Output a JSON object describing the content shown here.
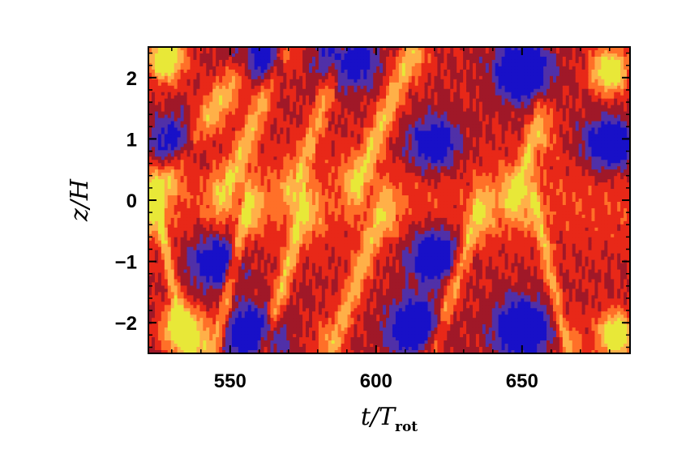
{
  "chart_data": {
    "type": "heatmap",
    "title": "",
    "xlabel": {
      "main": "t/T",
      "sub": "rot"
    },
    "ylabel": "z/H",
    "xlim": [
      522,
      687
    ],
    "ylim": [
      -2.5,
      2.5
    ],
    "xticks": [
      550,
      600,
      650
    ],
    "xtick_labels": [
      "550",
      "600",
      "650"
    ],
    "yticks": [
      -2,
      -1,
      0,
      1,
      2
    ],
    "ytick_labels": [
      "−2",
      "−1",
      "0",
      "1",
      "2"
    ],
    "colorbar": false,
    "levels": 7,
    "palette": [
      "#1810c8",
      "#5030a8",
      "#a01828",
      "#e82818",
      "#ff7028",
      "#ffb048",
      "#e8e838"
    ],
    "features": [
      {
        "kind": "positive-band",
        "t_start": 525,
        "z_start": 0.1,
        "t_end": 555,
        "z_end": 2.2,
        "level": 0.85
      },
      {
        "kind": "positive-band",
        "t_start": 548,
        "z_start": 0.1,
        "t_end": 568,
        "z_end": 2.4,
        "level": 0.8
      },
      {
        "kind": "positive-band",
        "t_start": 572,
        "z_start": 0.2,
        "t_end": 588,
        "z_end": 2.4,
        "level": 0.75
      },
      {
        "kind": "positive-band",
        "t_start": 594,
        "z_start": 0.3,
        "t_end": 612,
        "z_end": 2.4,
        "level": 0.85
      },
      {
        "kind": "positive-band",
        "t_start": 648,
        "z_start": 0.1,
        "t_end": 655,
        "z_end": 1.2,
        "level": 0.85
      },
      {
        "kind": "positive-band",
        "t_start": 525,
        "z_start": -0.1,
        "t_end": 535,
        "z_end": -2.4,
        "level": 0.8
      },
      {
        "kind": "positive-band",
        "t_start": 556,
        "z_start": -0.1,
        "t_end": 545,
        "z_end": -2.4,
        "level": 0.85
      },
      {
        "kind": "positive-band",
        "t_start": 575,
        "z_start": -0.2,
        "t_end": 562,
        "z_end": -2.4,
        "level": 0.85
      },
      {
        "kind": "positive-band",
        "t_start": 602,
        "z_start": -0.2,
        "t_end": 585,
        "z_end": -2.4,
        "level": 0.8
      },
      {
        "kind": "positive-band",
        "t_start": 635,
        "z_start": -0.2,
        "t_end": 620,
        "z_end": -2.4,
        "level": 0.85
      },
      {
        "kind": "positive-band",
        "t_start": 655,
        "z_start": -0.1,
        "t_end": 665,
        "z_end": -2.4,
        "level": 0.8
      },
      {
        "kind": "negative-spot",
        "t": 532,
        "z": 0.9,
        "level": 0.1
      },
      {
        "kind": "negative-spot",
        "t": 560,
        "z": 2.3,
        "level": 0.05
      },
      {
        "kind": "negative-spot",
        "t": 590,
        "z": 2.3,
        "level": 0.05
      },
      {
        "kind": "negative-spot",
        "t": 650,
        "z": 2.1,
        "level": 0.0
      },
      {
        "kind": "negative-spot",
        "t": 680,
        "z": 0.9,
        "level": 0.1
      },
      {
        "kind": "negative-spot",
        "t": 558,
        "z": -2.2,
        "level": 0.0
      },
      {
        "kind": "negative-spot",
        "t": 614,
        "z": -2.1,
        "level": 0.0
      },
      {
        "kind": "negative-spot",
        "t": 650,
        "z": -2.1,
        "level": 0.0
      },
      {
        "kind": "negative-spot",
        "t": 545,
        "z": -1.0,
        "level": 0.15
      },
      {
        "kind": "negative-spot",
        "t": 620,
        "z": -0.9,
        "level": 0.1
      },
      {
        "kind": "negative-spot",
        "t": 620,
        "z": 0.9,
        "level": 0.15
      },
      {
        "kind": "bright-spot",
        "t": 528,
        "z": 2.3,
        "level": 1.0
      },
      {
        "kind": "bright-spot",
        "t": 680,
        "z": 2.1,
        "level": 1.0
      },
      {
        "kind": "bright-spot",
        "t": 533,
        "z": -2.1,
        "level": 1.0
      },
      {
        "kind": "bright-spot",
        "t": 682,
        "z": -2.2,
        "level": 1.0
      }
    ]
  }
}
